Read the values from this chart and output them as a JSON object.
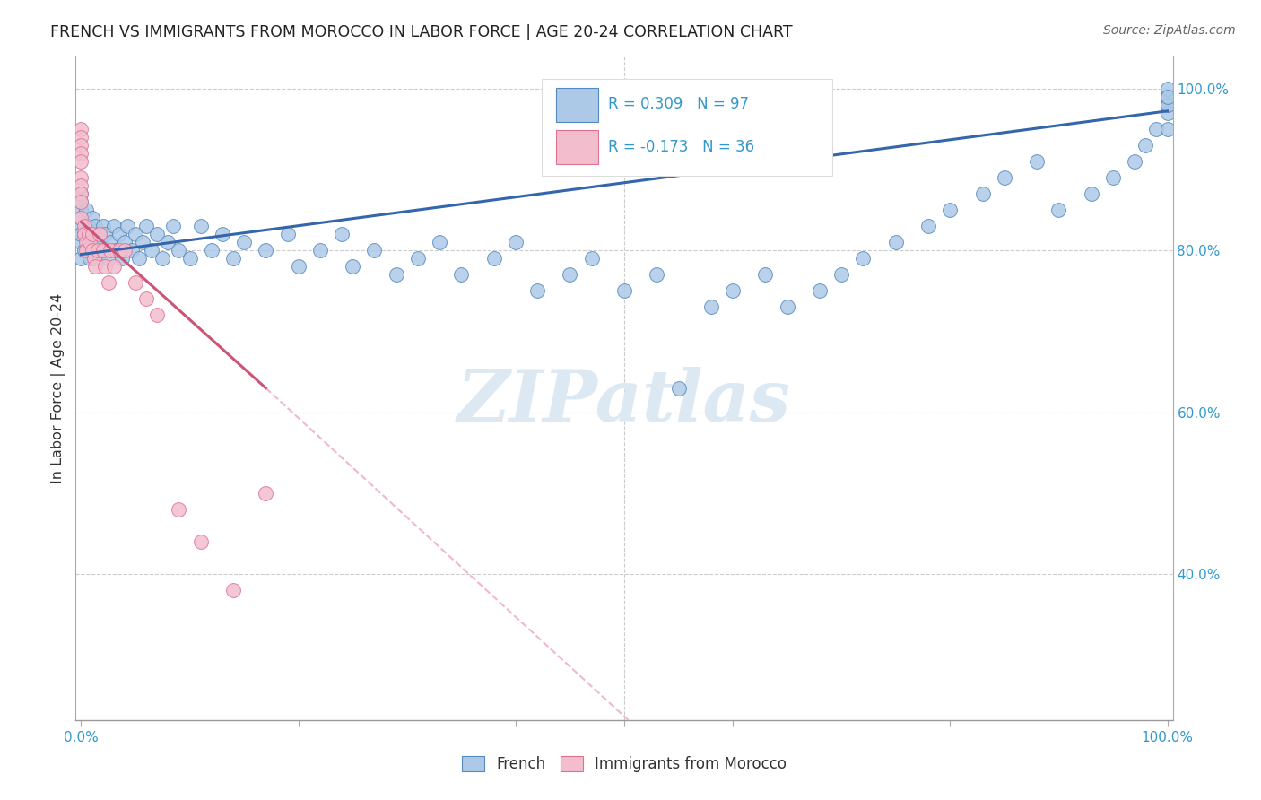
{
  "title": "FRENCH VS IMMIGRANTS FROM MOROCCO IN LABOR FORCE | AGE 20-24 CORRELATION CHART",
  "source": "Source: ZipAtlas.com",
  "ylabel": "In Labor Force | Age 20-24",
  "blue_R": 0.309,
  "blue_N": 97,
  "pink_R": -0.173,
  "pink_N": 36,
  "blue_color": "#adc9e8",
  "pink_color": "#f2bece",
  "blue_edge_color": "#5588bb",
  "pink_edge_color": "#e07090",
  "blue_line_color": "#3366aa",
  "pink_line_color": "#cc5577",
  "pink_dash_color": "#f0b8c8",
  "xlim": [
    0.0,
    1.0
  ],
  "ylim": [
    0.22,
    1.04
  ],
  "right_yticks": [
    0.4,
    0.6,
    0.8,
    1.0
  ],
  "right_yticklabels": [
    "40.0%",
    "60.0%",
    "80.0%",
    "100.0%"
  ],
  "grid_color": "#cccccc",
  "bg_color": "#ffffff",
  "watermark_color": "#dce8f2",
  "blue_trendline": [
    [
      0.0,
      0.795
    ],
    [
      1.0,
      0.972
    ]
  ],
  "pink_trendline_solid": [
    [
      0.0,
      0.835
    ],
    [
      0.17,
      0.63
    ]
  ],
  "pink_trendline_dash": [
    [
      0.17,
      0.63
    ],
    [
      0.52,
      0.2
    ]
  ],
  "blue_x": [
    0.0,
    0.0,
    0.0,
    0.0,
    0.0,
    0.0,
    0.0,
    0.0,
    0.003,
    0.003,
    0.005,
    0.005,
    0.007,
    0.007,
    0.008,
    0.009,
    0.01,
    0.01,
    0.012,
    0.013,
    0.015,
    0.015,
    0.017,
    0.018,
    0.02,
    0.02,
    0.022,
    0.025,
    0.027,
    0.03,
    0.032,
    0.035,
    0.038,
    0.04,
    0.043,
    0.047,
    0.05,
    0.053,
    0.057,
    0.06,
    0.065,
    0.07,
    0.075,
    0.08,
    0.085,
    0.09,
    0.1,
    0.11,
    0.12,
    0.13,
    0.14,
    0.15,
    0.17,
    0.19,
    0.2,
    0.22,
    0.24,
    0.25,
    0.27,
    0.29,
    0.31,
    0.33,
    0.35,
    0.38,
    0.4,
    0.42,
    0.45,
    0.47,
    0.5,
    0.53,
    0.55,
    0.58,
    0.6,
    0.63,
    0.65,
    0.68,
    0.7,
    0.72,
    0.75,
    0.78,
    0.8,
    0.83,
    0.85,
    0.88,
    0.9,
    0.93,
    0.95,
    0.97,
    0.98,
    0.99,
    1.0,
    1.0,
    1.0,
    1.0,
    1.0,
    1.0,
    1.0
  ],
  "blue_y": [
    0.85,
    0.87,
    0.83,
    0.81,
    0.79,
    0.82,
    0.84,
    0.86,
    0.82,
    0.8,
    0.83,
    0.85,
    0.81,
    0.83,
    0.79,
    0.82,
    0.8,
    0.84,
    0.81,
    0.83,
    0.8,
    0.82,
    0.79,
    0.81,
    0.83,
    0.8,
    0.82,
    0.79,
    0.81,
    0.83,
    0.8,
    0.82,
    0.79,
    0.81,
    0.83,
    0.8,
    0.82,
    0.79,
    0.81,
    0.83,
    0.8,
    0.82,
    0.79,
    0.81,
    0.83,
    0.8,
    0.79,
    0.83,
    0.8,
    0.82,
    0.79,
    0.81,
    0.8,
    0.82,
    0.78,
    0.8,
    0.82,
    0.78,
    0.8,
    0.77,
    0.79,
    0.81,
    0.77,
    0.79,
    0.81,
    0.75,
    0.77,
    0.79,
    0.75,
    0.77,
    0.63,
    0.73,
    0.75,
    0.77,
    0.73,
    0.75,
    0.77,
    0.79,
    0.81,
    0.83,
    0.85,
    0.87,
    0.89,
    0.91,
    0.85,
    0.87,
    0.89,
    0.91,
    0.93,
    0.95,
    0.98,
    0.97,
    0.99,
    0.95,
    0.98,
    1.0,
    0.99
  ],
  "pink_x": [
    0.0,
    0.0,
    0.0,
    0.0,
    0.0,
    0.0,
    0.0,
    0.0,
    0.0,
    0.0,
    0.003,
    0.003,
    0.005,
    0.005,
    0.007,
    0.008,
    0.01,
    0.01,
    0.012,
    0.013,
    0.015,
    0.017,
    0.02,
    0.022,
    0.025,
    0.027,
    0.03,
    0.035,
    0.04,
    0.05,
    0.06,
    0.07,
    0.09,
    0.11,
    0.14,
    0.17
  ],
  "pink_y": [
    0.95,
    0.94,
    0.93,
    0.92,
    0.91,
    0.89,
    0.88,
    0.87,
    0.86,
    0.84,
    0.83,
    0.82,
    0.81,
    0.8,
    0.82,
    0.81,
    0.82,
    0.8,
    0.79,
    0.78,
    0.8,
    0.82,
    0.8,
    0.78,
    0.76,
    0.8,
    0.78,
    0.8,
    0.8,
    0.76,
    0.74,
    0.72,
    0.48,
    0.44,
    0.38,
    0.5
  ]
}
